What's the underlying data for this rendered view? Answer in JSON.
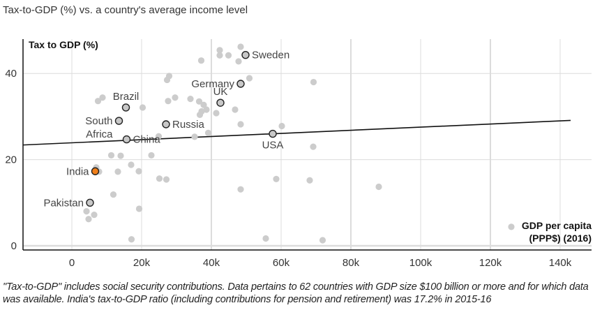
{
  "title": "Tax-to-GDP (%) vs. a country's average income level",
  "note": "\"Tax-to-GDP\" includes social security contributions. Data pertains to 62 countries with GDP size $100 billion or more and for which data was available. India's tax-to-GDP ratio (including contributions for pension and retirement) was 17.2% in 2015-16",
  "chart_data": {
    "type": "scatter",
    "title": "Tax-to-GDP (%) vs. a country's average income level",
    "xlabel": "GDP per capita (PPP$) (2016)",
    "ylabel": "Tax to GDP (%)",
    "xlim": [
      -14000,
      148000
    ],
    "ylim": [
      -1,
      48
    ],
    "grid": true,
    "x_ticks": [
      0,
      20000,
      40000,
      60000,
      80000,
      100000,
      120000,
      140000
    ],
    "x_tick_labels": [
      "0",
      "20k",
      "40k",
      "60k",
      "80k",
      "100k",
      "120k",
      "140k"
    ],
    "y_ticks": [
      0,
      20,
      40
    ],
    "y_tick_labels": [
      "0",
      "20",
      "40"
    ],
    "trendline": {
      "x": [
        -14000,
        143000
      ],
      "y": [
        23.4,
        29.1
      ]
    },
    "highlighted": [
      {
        "name": "Sweden",
        "x": 49800,
        "y": 44.3,
        "color": "#c8c8c8",
        "label_pos": "right"
      },
      {
        "name": "Germany",
        "x": 48400,
        "y": 37.6,
        "color": "#c8c8c8",
        "label_pos": "left"
      },
      {
        "name": "UK",
        "x": 42600,
        "y": 33.2,
        "color": "#c8c8c8",
        "label_pos": "top"
      },
      {
        "name": "Brazil",
        "x": 15500,
        "y": 32.1,
        "color": "#c8c8c8",
        "label_pos": "top"
      },
      {
        "name": "South Africa",
        "x": 13500,
        "y": 29.0,
        "color": "#c8c8c8",
        "label_pos": "left"
      },
      {
        "name": "Russia",
        "x": 27000,
        "y": 28.2,
        "color": "#c8c8c8",
        "label_pos": "right"
      },
      {
        "name": "China",
        "x": 15700,
        "y": 24.7,
        "color": "#c8c8c8",
        "label_pos": "right"
      },
      {
        "name": "USA",
        "x": 57600,
        "y": 26.0,
        "color": "#c8c8c8",
        "label_pos": "bottom"
      },
      {
        "name": "India",
        "x": 6700,
        "y": 17.3,
        "color": "#f07f1a",
        "label_pos": "left"
      },
      {
        "name": "Pakistan",
        "x": 5200,
        "y": 10.0,
        "color": "#c8c8c8",
        "label_pos": "left"
      }
    ],
    "others": {
      "color": "#cccccc",
      "points": [
        [
          7500,
          33.6
        ],
        [
          8800,
          34.4
        ],
        [
          20300,
          32.1
        ],
        [
          27300,
          38.5
        ],
        [
          27900,
          39.4
        ],
        [
          34000,
          34.1
        ],
        [
          36500,
          33.5
        ],
        [
          37800,
          32.7
        ],
        [
          38600,
          31.6
        ],
        [
          37200,
          31.2
        ],
        [
          36700,
          30.4
        ],
        [
          27600,
          33.6
        ],
        [
          29600,
          34.4
        ],
        [
          37100,
          43.0
        ],
        [
          42400,
          45.4
        ],
        [
          42400,
          44.2
        ],
        [
          44900,
          44.2
        ],
        [
          48400,
          46.2
        ],
        [
          47800,
          42.8
        ],
        [
          50900,
          38.9
        ],
        [
          46800,
          31.6
        ],
        [
          48400,
          28.2
        ],
        [
          41400,
          30.8
        ],
        [
          60200,
          27.8
        ],
        [
          69300,
          38.0
        ],
        [
          35200,
          25.3
        ],
        [
          39100,
          26.2
        ],
        [
          24900,
          25.4
        ],
        [
          11300,
          21.0
        ],
        [
          14000,
          20.9
        ],
        [
          17000,
          18.8
        ],
        [
          13200,
          17.2
        ],
        [
          22800,
          21.0
        ],
        [
          19200,
          17.3
        ],
        [
          7000,
          18.2
        ],
        [
          7800,
          17.2
        ],
        [
          11900,
          11.9
        ],
        [
          19300,
          8.6
        ],
        [
          4200,
          8.0
        ],
        [
          6400,
          7.2
        ],
        [
          4800,
          6.2
        ],
        [
          17100,
          1.5
        ],
        [
          25100,
          15.6
        ],
        [
          27100,
          15.4
        ],
        [
          48400,
          13.1
        ],
        [
          58600,
          15.5
        ],
        [
          68200,
          15.2
        ],
        [
          69200,
          23.0
        ],
        [
          88000,
          13.7
        ],
        [
          55600,
          1.7
        ],
        [
          71900,
          1.3
        ],
        [
          126000,
          4.4
        ]
      ]
    }
  }
}
